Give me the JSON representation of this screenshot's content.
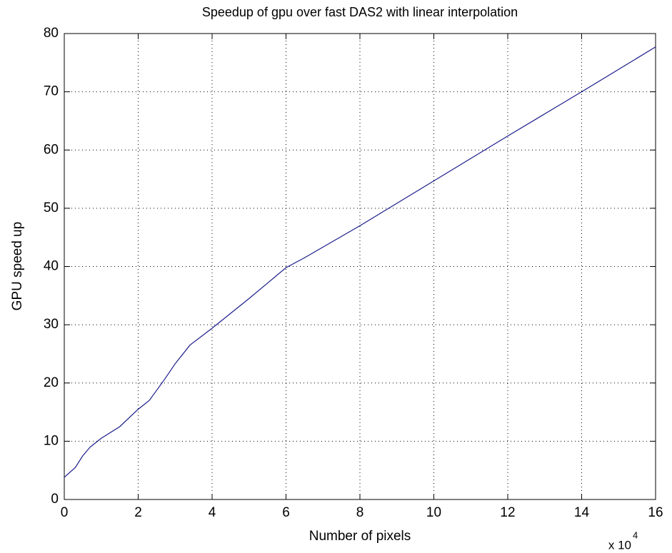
{
  "chart_data": {
    "type": "line",
    "title": "Speedup of gpu over fast DAS2 with linear interpolation",
    "x_label": "Number of pixels",
    "y_label": "GPU speed up",
    "x_multiplier": "x 10",
    "x_multiplier_exponent": "4",
    "x": [
      0,
      0.3,
      0.5,
      0.7,
      1,
      1.5,
      2,
      2.3,
      2.7,
      3,
      3.4,
      4,
      5,
      6,
      6.5,
      8,
      10,
      12,
      14,
      16
    ],
    "values": [
      3.8,
      5.5,
      7.5,
      9,
      10.5,
      12.5,
      15.5,
      17,
      20.5,
      23.3,
      26.5,
      29.4,
      34.5,
      39.8,
      41.5,
      47,
      54.7,
      62.4,
      70,
      77.7
    ],
    "color": "#1c1c8c",
    "xlim": [
      0,
      16
    ],
    "xticks": [
      0,
      2,
      4,
      6,
      8,
      10,
      12,
      14,
      16
    ],
    "ylim": [
      0,
      80
    ],
    "yticks": [
      0,
      10,
      20,
      30,
      40,
      50,
      60,
      70,
      80
    ],
    "grid": true
  }
}
